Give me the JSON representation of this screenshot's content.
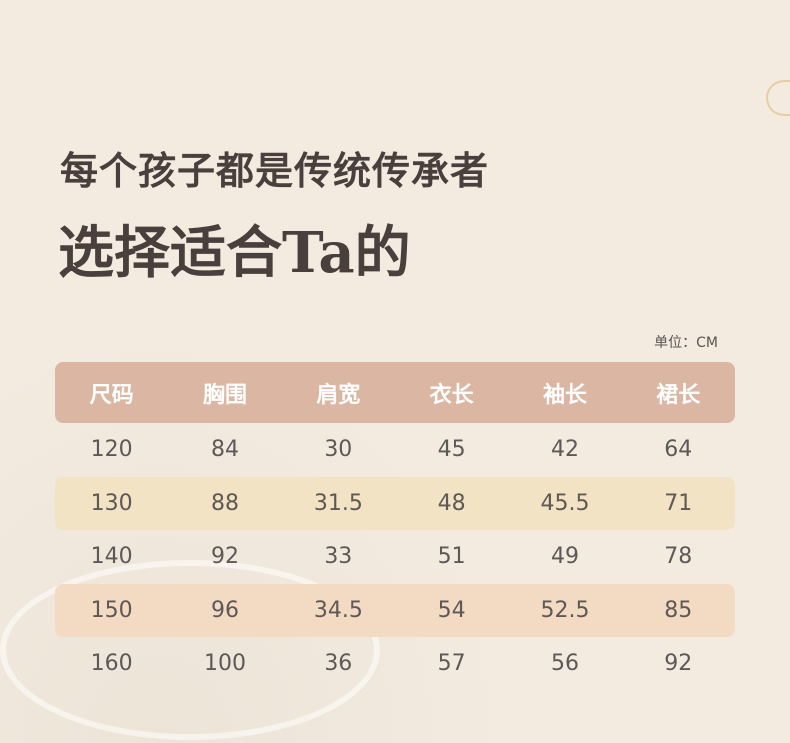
{
  "headline": "每个孩子都是传统传承者",
  "subheadline": "选择适合Ta的",
  "unit": "单位：CM",
  "table": {
    "headers": [
      "尺码",
      "胸围",
      "肩宽",
      "衣长",
      "袖长",
      "裙长"
    ],
    "rows": [
      [
        "120",
        "84",
        "30",
        "45",
        "42",
        "64"
      ],
      [
        "130",
        "88",
        "31.5",
        "48",
        "45.5",
        "71"
      ],
      [
        "140",
        "92",
        "33",
        "51",
        "49",
        "78"
      ],
      [
        "150",
        "96",
        "34.5",
        "54",
        "52.5",
        "85"
      ],
      [
        "160",
        "100",
        "36",
        "57",
        "56",
        "92"
      ]
    ]
  },
  "colors": {
    "header": "#dbb7a3",
    "row_highlight_yellow": "#f1e3c3",
    "row_highlight_peach": "#f3dac3",
    "text": "#4a3f3c"
  }
}
